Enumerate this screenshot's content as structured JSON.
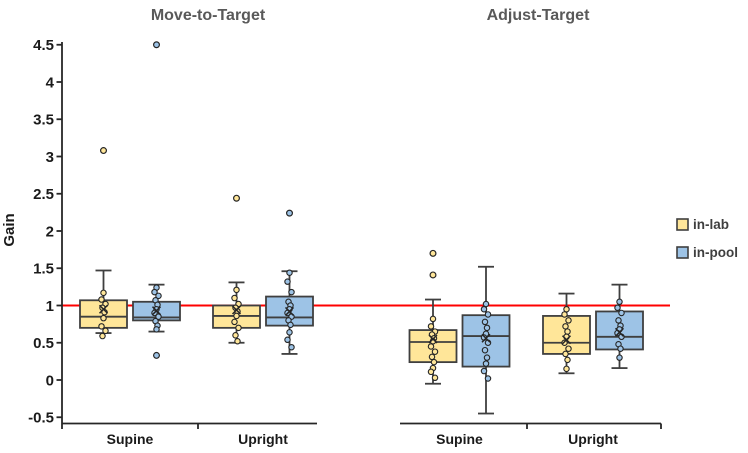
{
  "figure": {
    "background": "#ffffff"
  },
  "chart_data": {
    "type": "boxplot",
    "ylabel": "Gain",
    "ylim": [
      -0.5,
      4.5
    ],
    "ytick_step": 0.5,
    "grid": false,
    "reference_line": {
      "y": 1.0,
      "color": "#ff0000"
    },
    "legend": {
      "position": "right",
      "items": [
        {
          "label": "in-lab",
          "fill": "#FFE699",
          "border": "#3f3f3f"
        },
        {
          "label": "in-pool",
          "fill": "#9DC3E6",
          "border": "#3f3f3f"
        }
      ]
    },
    "panels": [
      {
        "title": "Move-to-Target",
        "categories": [
          "Supine",
          "Upright"
        ]
      },
      {
        "title": "Adjust-Target",
        "categories": [
          "Supine",
          "Upright"
        ]
      }
    ],
    "series": [
      {
        "name": "in-lab",
        "fill": "#FFE699",
        "stroke": "#3f3f3f"
      },
      {
        "name": "in-pool",
        "fill": "#9DC3E6",
        "stroke": "#3f3f3f"
      }
    ],
    "boxes": [
      {
        "panel": "Move-to-Target",
        "category": "Supine",
        "series": "in-lab",
        "whisker_low": 0.63,
        "q1": 0.7,
        "median": 0.85,
        "q3": 1.07,
        "whisker_high": 1.47,
        "mean": 0.95,
        "outliers": [
          3.08
        ],
        "points": [
          1.17,
          1.08,
          1.02,
          0.97,
          0.91,
          0.83,
          0.72,
          0.66,
          0.59
        ]
      },
      {
        "panel": "Move-to-Target",
        "category": "Supine",
        "series": "in-pool",
        "whisker_low": 0.65,
        "q1": 0.8,
        "median": 0.84,
        "q3": 1.05,
        "whisker_high": 1.28,
        "mean": 0.93,
        "outliers": [
          4.5,
          0.33
        ],
        "points": [
          1.24,
          1.18,
          1.13,
          1.07,
          1.01,
          0.95,
          0.9,
          0.85,
          0.79,
          0.73,
          0.68
        ]
      },
      {
        "panel": "Move-to-Target",
        "category": "Upright",
        "series": "in-lab",
        "whisker_low": 0.5,
        "q1": 0.7,
        "median": 0.86,
        "q3": 1.0,
        "whisker_high": 1.31,
        "mean": 0.94,
        "outliers": [
          2.44
        ],
        "points": [
          1.21,
          1.1,
          1.02,
          0.97,
          0.92,
          0.86,
          0.78,
          0.7,
          0.6,
          0.52
        ]
      },
      {
        "panel": "Move-to-Target",
        "category": "Upright",
        "series": "in-pool",
        "whisker_low": 0.35,
        "q1": 0.73,
        "median": 0.84,
        "q3": 1.12,
        "whisker_high": 1.46,
        "mean": 0.92,
        "outliers": [
          2.24
        ],
        "points": [
          1.44,
          1.32,
          1.18,
          1.05,
          1.0,
          0.95,
          0.9,
          0.85,
          0.8,
          0.74,
          0.64,
          0.54,
          0.44
        ]
      },
      {
        "panel": "Adjust-Target",
        "category": "Supine",
        "series": "in-lab",
        "whisker_low": -0.05,
        "q1": 0.24,
        "median": 0.51,
        "q3": 0.67,
        "whisker_high": 1.08,
        "mean": 0.55,
        "outliers": [
          1.7,
          1.41
        ],
        "points": [
          0.82,
          0.72,
          0.65,
          0.61,
          0.56,
          0.52,
          0.45,
          0.38,
          0.31,
          0.24,
          0.16,
          0.11,
          0.03
        ]
      },
      {
        "panel": "Adjust-Target",
        "category": "Supine",
        "series": "in-pool",
        "whisker_low": -0.45,
        "q1": 0.18,
        "median": 0.59,
        "q3": 0.87,
        "whisker_high": 1.52,
        "mean": 0.56,
        "outliers": [],
        "points": [
          1.02,
          0.95,
          0.88,
          0.78,
          0.7,
          0.62,
          0.57,
          0.5,
          0.4,
          0.3,
          0.22,
          0.12,
          0.02
        ]
      },
      {
        "panel": "Adjust-Target",
        "category": "Upright",
        "series": "in-lab",
        "whisker_low": 0.09,
        "q1": 0.35,
        "median": 0.5,
        "q3": 0.86,
        "whisker_high": 1.16,
        "mean": 0.54,
        "outliers": [],
        "points": [
          0.95,
          0.88,
          0.8,
          0.72,
          0.65,
          0.58,
          0.5,
          0.42,
          0.35,
          0.27,
          0.15
        ]
      },
      {
        "panel": "Adjust-Target",
        "category": "Upright",
        "series": "in-pool",
        "whisker_low": 0.16,
        "q1": 0.41,
        "median": 0.58,
        "q3": 0.92,
        "whisker_high": 1.28,
        "mean": 0.64,
        "outliers": [],
        "points": [
          1.05,
          0.97,
          0.9,
          0.8,
          0.73,
          0.68,
          0.63,
          0.58,
          0.48,
          0.42,
          0.3
        ]
      }
    ],
    "colors": {
      "axis": "#262626",
      "box_border": "#3f3f3f",
      "title": "#595959",
      "tick_label": "#1a1a1a",
      "reference": "#ff0000"
    }
  }
}
